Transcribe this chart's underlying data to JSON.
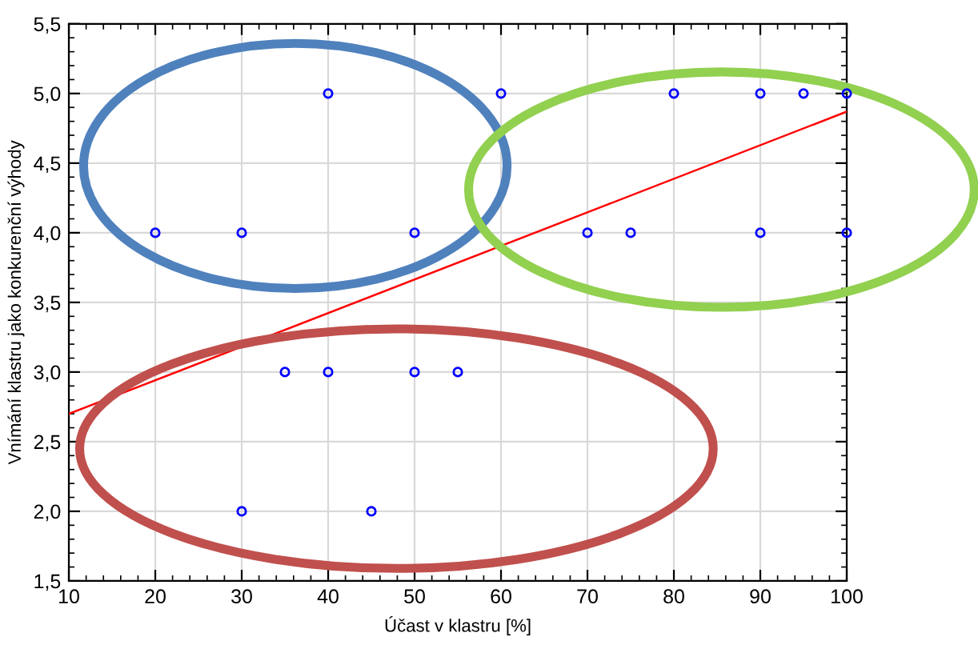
{
  "chart_data": {
    "type": "scatter",
    "xlabel": "Účast v klastru [%]",
    "ylabel": "Vnímání klastru jako konkurenční výhody",
    "series": [
      {
        "color": "#0000ff",
        "marker": "circle",
        "x": [
          20,
          30,
          40,
          50,
          60,
          70,
          75,
          80,
          90,
          95,
          100,
          90,
          100,
          35,
          40,
          50,
          55,
          30,
          45
        ],
        "values": [
          4,
          4,
          5,
          4,
          5,
          4,
          4,
          5,
          5,
          5,
          5,
          4,
          4,
          3,
          3,
          3,
          3,
          2,
          2
        ]
      },
      {
        "type": "line",
        "color": "#ff0000",
        "line_style": "solid",
        "marker": "none",
        "x": [
          10,
          100
        ],
        "values": [
          2.7,
          4.87
        ]
      }
    ],
    "xlim": [
      10,
      100
    ],
    "xticks": [
      10,
      20,
      30,
      40,
      50,
      60,
      70,
      80,
      90,
      100
    ],
    "ylim": [
      1.5,
      5.5
    ],
    "yticks": [
      {
        "value": 1.5,
        "label": "1,5"
      },
      {
        "value": 2.0,
        "label": "2,0"
      },
      {
        "value": 2.5,
        "label": "2,5"
      },
      {
        "value": 3.0,
        "label": "3,0"
      },
      {
        "value": 3.5,
        "label": "3,5"
      },
      {
        "value": 4.0,
        "label": "4,0"
      },
      {
        "value": 4.5,
        "label": "4,5"
      },
      {
        "value": 5.0,
        "label": "5,0"
      },
      {
        "value": 5.5,
        "label": "5,5"
      }
    ],
    "grid": true
  }
}
